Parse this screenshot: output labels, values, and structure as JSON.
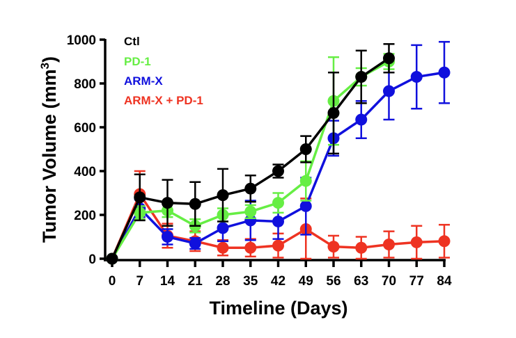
{
  "chart_data": {
    "type": "line",
    "title": "",
    "xlabel": "Timeline (Days)",
    "ylabel": "Tumor Volume (mm",
    "ylabel_superscript": "3",
    "ylabel_suffix": ")",
    "xlim": [
      0,
      84
    ],
    "ylim": [
      0,
      1000
    ],
    "x_ticks": [
      0,
      7,
      14,
      21,
      28,
      35,
      42,
      49,
      56,
      63,
      70,
      77,
      84
    ],
    "y_ticks": [
      0,
      200,
      400,
      600,
      800,
      1000
    ],
    "grid": false,
    "legend_position": "top-left",
    "error_bars": true,
    "series": [
      {
        "name": "Ctl",
        "color": "#000000",
        "x": [
          0,
          7,
          14,
          21,
          28,
          35,
          42,
          49,
          56,
          63,
          70
        ],
        "values": [
          0,
          280,
          255,
          250,
          290,
          320,
          400,
          500,
          665,
          830,
          915
        ],
        "errors": [
          0,
          105,
          105,
          100,
          120,
          60,
          30,
          60,
          185,
          120,
          65
        ]
      },
      {
        "name": "PD-1",
        "color": "#66ee44",
        "x": [
          0,
          7,
          14,
          21,
          28,
          35,
          42,
          49,
          56,
          63,
          70
        ],
        "values": [
          0,
          210,
          220,
          150,
          200,
          215,
          255,
          355,
          720,
          830,
          900
        ],
        "errors": [
          0,
          30,
          30,
          30,
          30,
          30,
          45,
          90,
          200,
          40,
          35
        ]
      },
      {
        "name": "ARM-X",
        "color": "#1010dd",
        "x": [
          0,
          7,
          14,
          21,
          28,
          35,
          42,
          49,
          56,
          63,
          70,
          77,
          84
        ],
        "values": [
          0,
          230,
          100,
          70,
          140,
          175,
          170,
          240,
          550,
          635,
          765,
          830,
          850
        ],
        "errors": [
          0,
          40,
          35,
          25,
          60,
          90,
          80,
          130,
          80,
          85,
          130,
          145,
          140
        ]
      },
      {
        "name": "ARM-X + PD-1",
        "color": "#ee3322",
        "x": [
          0,
          7,
          14,
          21,
          28,
          35,
          42,
          49,
          56,
          63,
          70,
          77,
          84
        ],
        "values": [
          0,
          295,
          105,
          80,
          50,
          50,
          60,
          135,
          55,
          50,
          65,
          75,
          80
        ],
        "errors": [
          0,
          105,
          55,
          45,
          35,
          40,
          55,
          140,
          50,
          50,
          60,
          75,
          75
        ]
      }
    ]
  }
}
